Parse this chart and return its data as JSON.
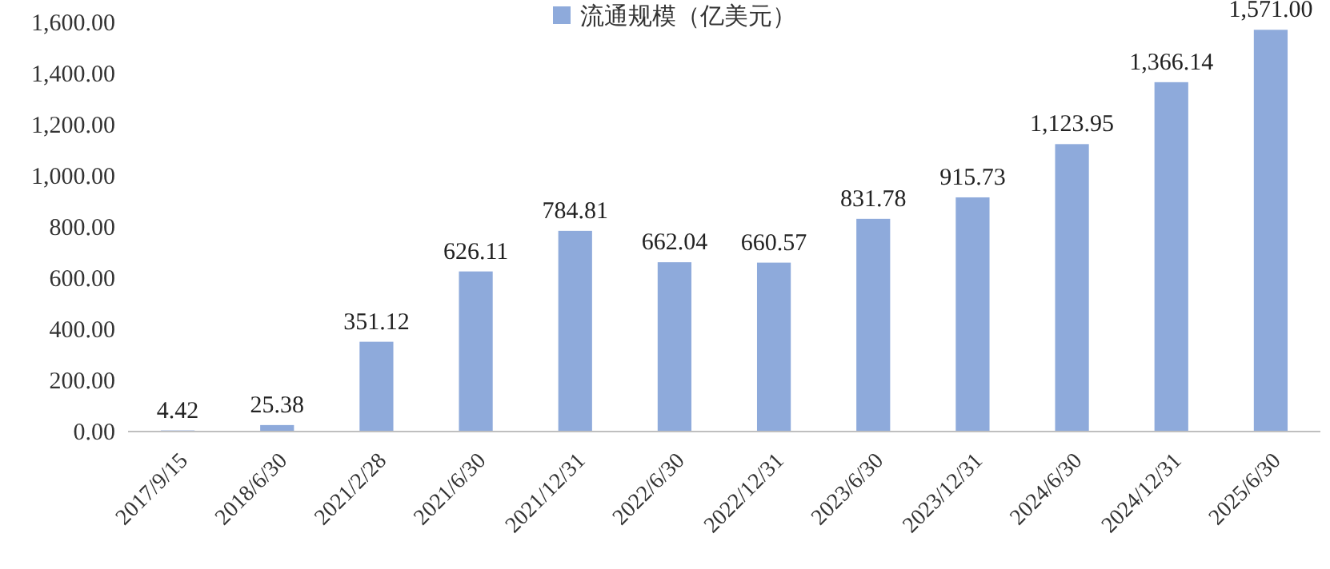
{
  "chart_data": {
    "type": "bar",
    "categories": [
      "2017/9/15",
      "2018/6/30",
      "2021/2/28",
      "2021/6/30",
      "2021/12/31",
      "2022/6/30",
      "2022/12/31",
      "2023/6/30",
      "2023/12/31",
      "2024/6/30",
      "2024/12/31",
      "2025/6/30"
    ],
    "series": [
      {
        "name": "流通规模（亿美元）",
        "color": "#8eaadb",
        "values": [
          4.42,
          25.38,
          351.12,
          626.11,
          784.81,
          662.04,
          660.57,
          831.78,
          915.73,
          1123.95,
          1366.14,
          1571.0
        ],
        "value_labels": [
          "4.42",
          "25.38",
          "351.12",
          "626.11",
          "784.81",
          "662.04",
          "660.57",
          "831.78",
          "915.73",
          "1,123.95",
          "1,366.14",
          "1,571.00"
        ]
      }
    ],
    "ylim": [
      0,
      1600
    ],
    "yticks": [
      {
        "value": 0,
        "label": "0.00"
      },
      {
        "value": 200,
        "label": "200.00"
      },
      {
        "value": 400,
        "label": "400.00"
      },
      {
        "value": 600,
        "label": "600.00"
      },
      {
        "value": 800,
        "label": "800.00"
      },
      {
        "value": 1000,
        "label": "1,000.00"
      },
      {
        "value": 1200,
        "label": "1,200.00"
      },
      {
        "value": 1400,
        "label": "1,400.00"
      },
      {
        "value": 1600,
        "label": "1,600.00"
      }
    ],
    "legend": "top"
  }
}
